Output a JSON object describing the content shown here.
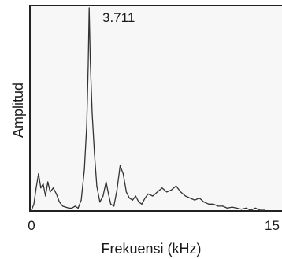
{
  "chart_data": {
    "type": "line",
    "title": "",
    "xlabel": "Frekuensi (kHz)",
    "ylabel": "Amplitud",
    "xlim": [
      0,
      15
    ],
    "ylim": [
      0,
      1
    ],
    "xtick_labels": [
      "0",
      "15"
    ],
    "grid": false,
    "annotation": {
      "text": "3.711",
      "x": 3.711,
      "y": 1.0
    },
    "series": [
      {
        "color": "#333333",
        "x": [
          0.0,
          0.15,
          0.3,
          0.45,
          0.6,
          0.75,
          0.9,
          1.05,
          1.2,
          1.4,
          1.6,
          1.8,
          2.0,
          2.2,
          2.4,
          2.6,
          2.8,
          3.0,
          3.2,
          3.4,
          3.55,
          3.65,
          3.711,
          3.78,
          3.9,
          4.05,
          4.2,
          4.4,
          4.6,
          4.8,
          4.95,
          5.1,
          5.3,
          5.5,
          5.7,
          5.9,
          6.1,
          6.3,
          6.5,
          6.7,
          6.9,
          7.1,
          7.3,
          7.5,
          7.8,
          8.1,
          8.4,
          8.7,
          9.0,
          9.3,
          9.6,
          9.9,
          10.2,
          10.5,
          10.8,
          11.1,
          11.4,
          11.7,
          12.0,
          12.3,
          12.6,
          12.9,
          13.2,
          13.5,
          13.8,
          14.1,
          14.4,
          14.7,
          15.0
        ],
        "y": [
          0.0,
          0.03,
          0.11,
          0.18,
          0.11,
          0.13,
          0.07,
          0.14,
          0.09,
          0.11,
          0.08,
          0.04,
          0.02,
          0.015,
          0.01,
          0.01,
          0.02,
          0.01,
          0.05,
          0.2,
          0.42,
          0.72,
          1.0,
          0.74,
          0.48,
          0.28,
          0.12,
          0.04,
          0.07,
          0.14,
          0.08,
          0.03,
          0.02,
          0.1,
          0.22,
          0.18,
          0.09,
          0.06,
          0.05,
          0.07,
          0.04,
          0.03,
          0.06,
          0.08,
          0.07,
          0.09,
          0.11,
          0.09,
          0.1,
          0.12,
          0.09,
          0.07,
          0.06,
          0.05,
          0.06,
          0.04,
          0.03,
          0.03,
          0.02,
          0.02,
          0.01,
          0.015,
          0.01,
          0.005,
          0.01,
          0.0,
          0.01,
          0.0,
          0.0
        ]
      }
    ]
  }
}
